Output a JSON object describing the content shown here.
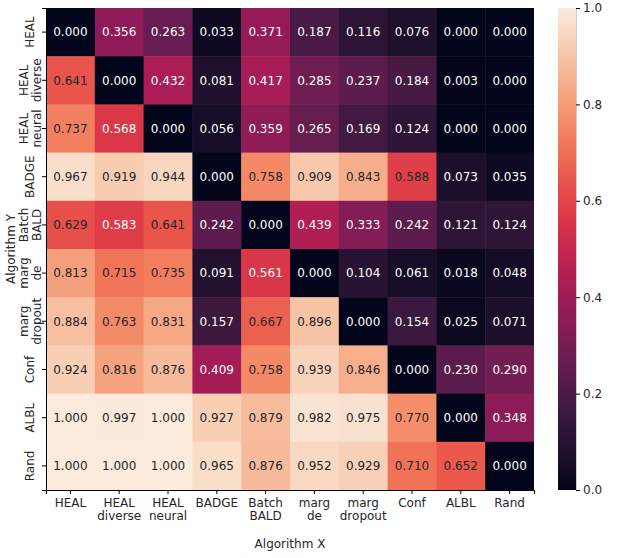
{
  "chart_data": {
    "type": "heatmap",
    "x_label": "Algorithm X",
    "y_label": "Algorithm Y",
    "x_categories": [
      "HEAL",
      "HEAL diverse",
      "HEAL neural",
      "BADGE",
      "Batch BALD",
      "marg de",
      "marg dropout",
      "Conf",
      "ALBL",
      "Rand"
    ],
    "y_categories": [
      "HEAL",
      "HEAL diverse",
      "HEAL neural",
      "BADGE",
      "Batch BALD",
      "marg de",
      "marg dropout",
      "Conf",
      "ALBL",
      "Rand"
    ],
    "values": [
      [
        0.0,
        0.356,
        0.263,
        0.033,
        0.371,
        0.187,
        0.116,
        0.076,
        0.0,
        0.0
      ],
      [
        0.641,
        0.0,
        0.432,
        0.081,
        0.417,
        0.285,
        0.237,
        0.184,
        0.003,
        0.0
      ],
      [
        0.737,
        0.568,
        0.0,
        0.056,
        0.359,
        0.265,
        0.169,
        0.124,
        0.0,
        0.0
      ],
      [
        0.967,
        0.919,
        0.944,
        0.0,
        0.758,
        0.909,
        0.843,
        0.588,
        0.073,
        0.035
      ],
      [
        0.629,
        0.583,
        0.641,
        0.242,
        0.0,
        0.439,
        0.333,
        0.242,
        0.121,
        0.124
      ],
      [
        0.813,
        0.715,
        0.735,
        0.091,
        0.561,
        0.0,
        0.104,
        0.061,
        0.018,
        0.048
      ],
      [
        0.884,
        0.763,
        0.831,
        0.157,
        0.667,
        0.896,
        0.0,
        0.154,
        0.025,
        0.071
      ],
      [
        0.924,
        0.816,
        0.876,
        0.409,
        0.758,
        0.939,
        0.846,
        0.0,
        0.23,
        0.29
      ],
      [
        1.0,
        0.997,
        1.0,
        0.927,
        0.879,
        0.982,
        0.975,
        0.77,
        0.0,
        0.348
      ],
      [
        1.0,
        1.0,
        1.0,
        0.965,
        0.876,
        0.952,
        0.929,
        0.71,
        0.652,
        0.0
      ]
    ],
    "value_labels": [
      [
        "0.000",
        "0.356",
        "0.263",
        "0.033",
        "0.371",
        "0.187",
        "0.116",
        "0.076",
        "0.000",
        "0.000"
      ],
      [
        "0.641",
        "0.000",
        "0.432",
        "0.081",
        "0.417",
        "0.285",
        "0.237",
        "0.184",
        "0.003",
        "0.000"
      ],
      [
        "0.737",
        "0.568",
        "0.000",
        "0.056",
        "0.359",
        "0.265",
        "0.169",
        "0.124",
        "0.000",
        "0.000"
      ],
      [
        "0.967",
        "0.919",
        "0.944",
        "0.000",
        "0.758",
        "0.909",
        "0.843",
        "0.588",
        "0.073",
        "0.035"
      ],
      [
        "0.629",
        "0.583",
        "0.641",
        "0.242",
        "0.000",
        "0.439",
        "0.333",
        "0.242",
        "0.121",
        "0.124"
      ],
      [
        "0.813",
        "0.715",
        "0.735",
        "0.091",
        "0.561",
        "0.000",
        "0.104",
        "0.061",
        "0.018",
        "0.048"
      ],
      [
        "0.884",
        "0.763",
        "0.831",
        "0.157",
        "0.667",
        "0.896",
        "0.000",
        "0.154",
        "0.025",
        "0.071"
      ],
      [
        "0.924",
        "0.816",
        "0.876",
        "0.409",
        "0.758",
        "0.939",
        "0.846",
        "0.000",
        "0.230",
        "0.290"
      ],
      [
        "1.000",
        "0.997",
        "1.000",
        "0.927",
        "0.879",
        "0.982",
        "0.975",
        "0.770",
        "0.000",
        "0.348"
      ],
      [
        "1.000",
        "1.000",
        "1.000",
        "0.965",
        "0.876",
        "0.952",
        "0.929",
        "0.710",
        "0.652",
        "0.000"
      ]
    ],
    "data_labels": true,
    "colorbar_range": [
      0,
      1
    ],
    "colorbar_ticks": [
      {
        "value": 0,
        "label": "0.0"
      },
      0.2,
      0.4,
      0.6,
      0.8,
      {
        "value": 1,
        "label": "1.0"
      }
    ]
  }
}
